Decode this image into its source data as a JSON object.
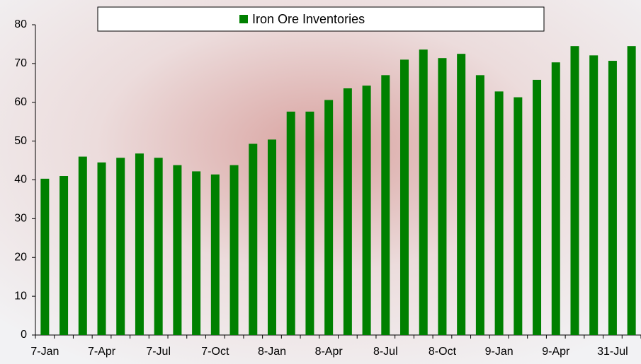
{
  "chart_data": {
    "type": "bar",
    "title": "Iron Ore Inventories",
    "categories": [
      "7-Jan",
      null,
      null,
      "7-Apr",
      null,
      null,
      "7-Jul",
      null,
      null,
      "7-Oct",
      null,
      null,
      "8-Jan",
      null,
      null,
      "8-Apr",
      null,
      null,
      "8-Jul",
      null,
      null,
      "8-Oct",
      null,
      null,
      "9-Jan",
      null,
      null,
      "9-Apr",
      null,
      null,
      "31-Jul",
      null
    ],
    "values": [
      40.3,
      41,
      46,
      44.5,
      45.7,
      46.8,
      45.7,
      43.8,
      42.2,
      41.4,
      43.8,
      49.3,
      50.4,
      57.6,
      57.6,
      60.6,
      63.6,
      64.3,
      67,
      71,
      73.6,
      71.4,
      72.5,
      67,
      62.8,
      61.3,
      65.8,
      70.3,
      74.5,
      72.1,
      70.7,
      74.5
    ],
    "color": "#008000",
    "ylim": [
      0,
      80
    ],
    "yticks": [
      0,
      10,
      20,
      30,
      40,
      50,
      60,
      70,
      80
    ],
    "grid": false
  }
}
